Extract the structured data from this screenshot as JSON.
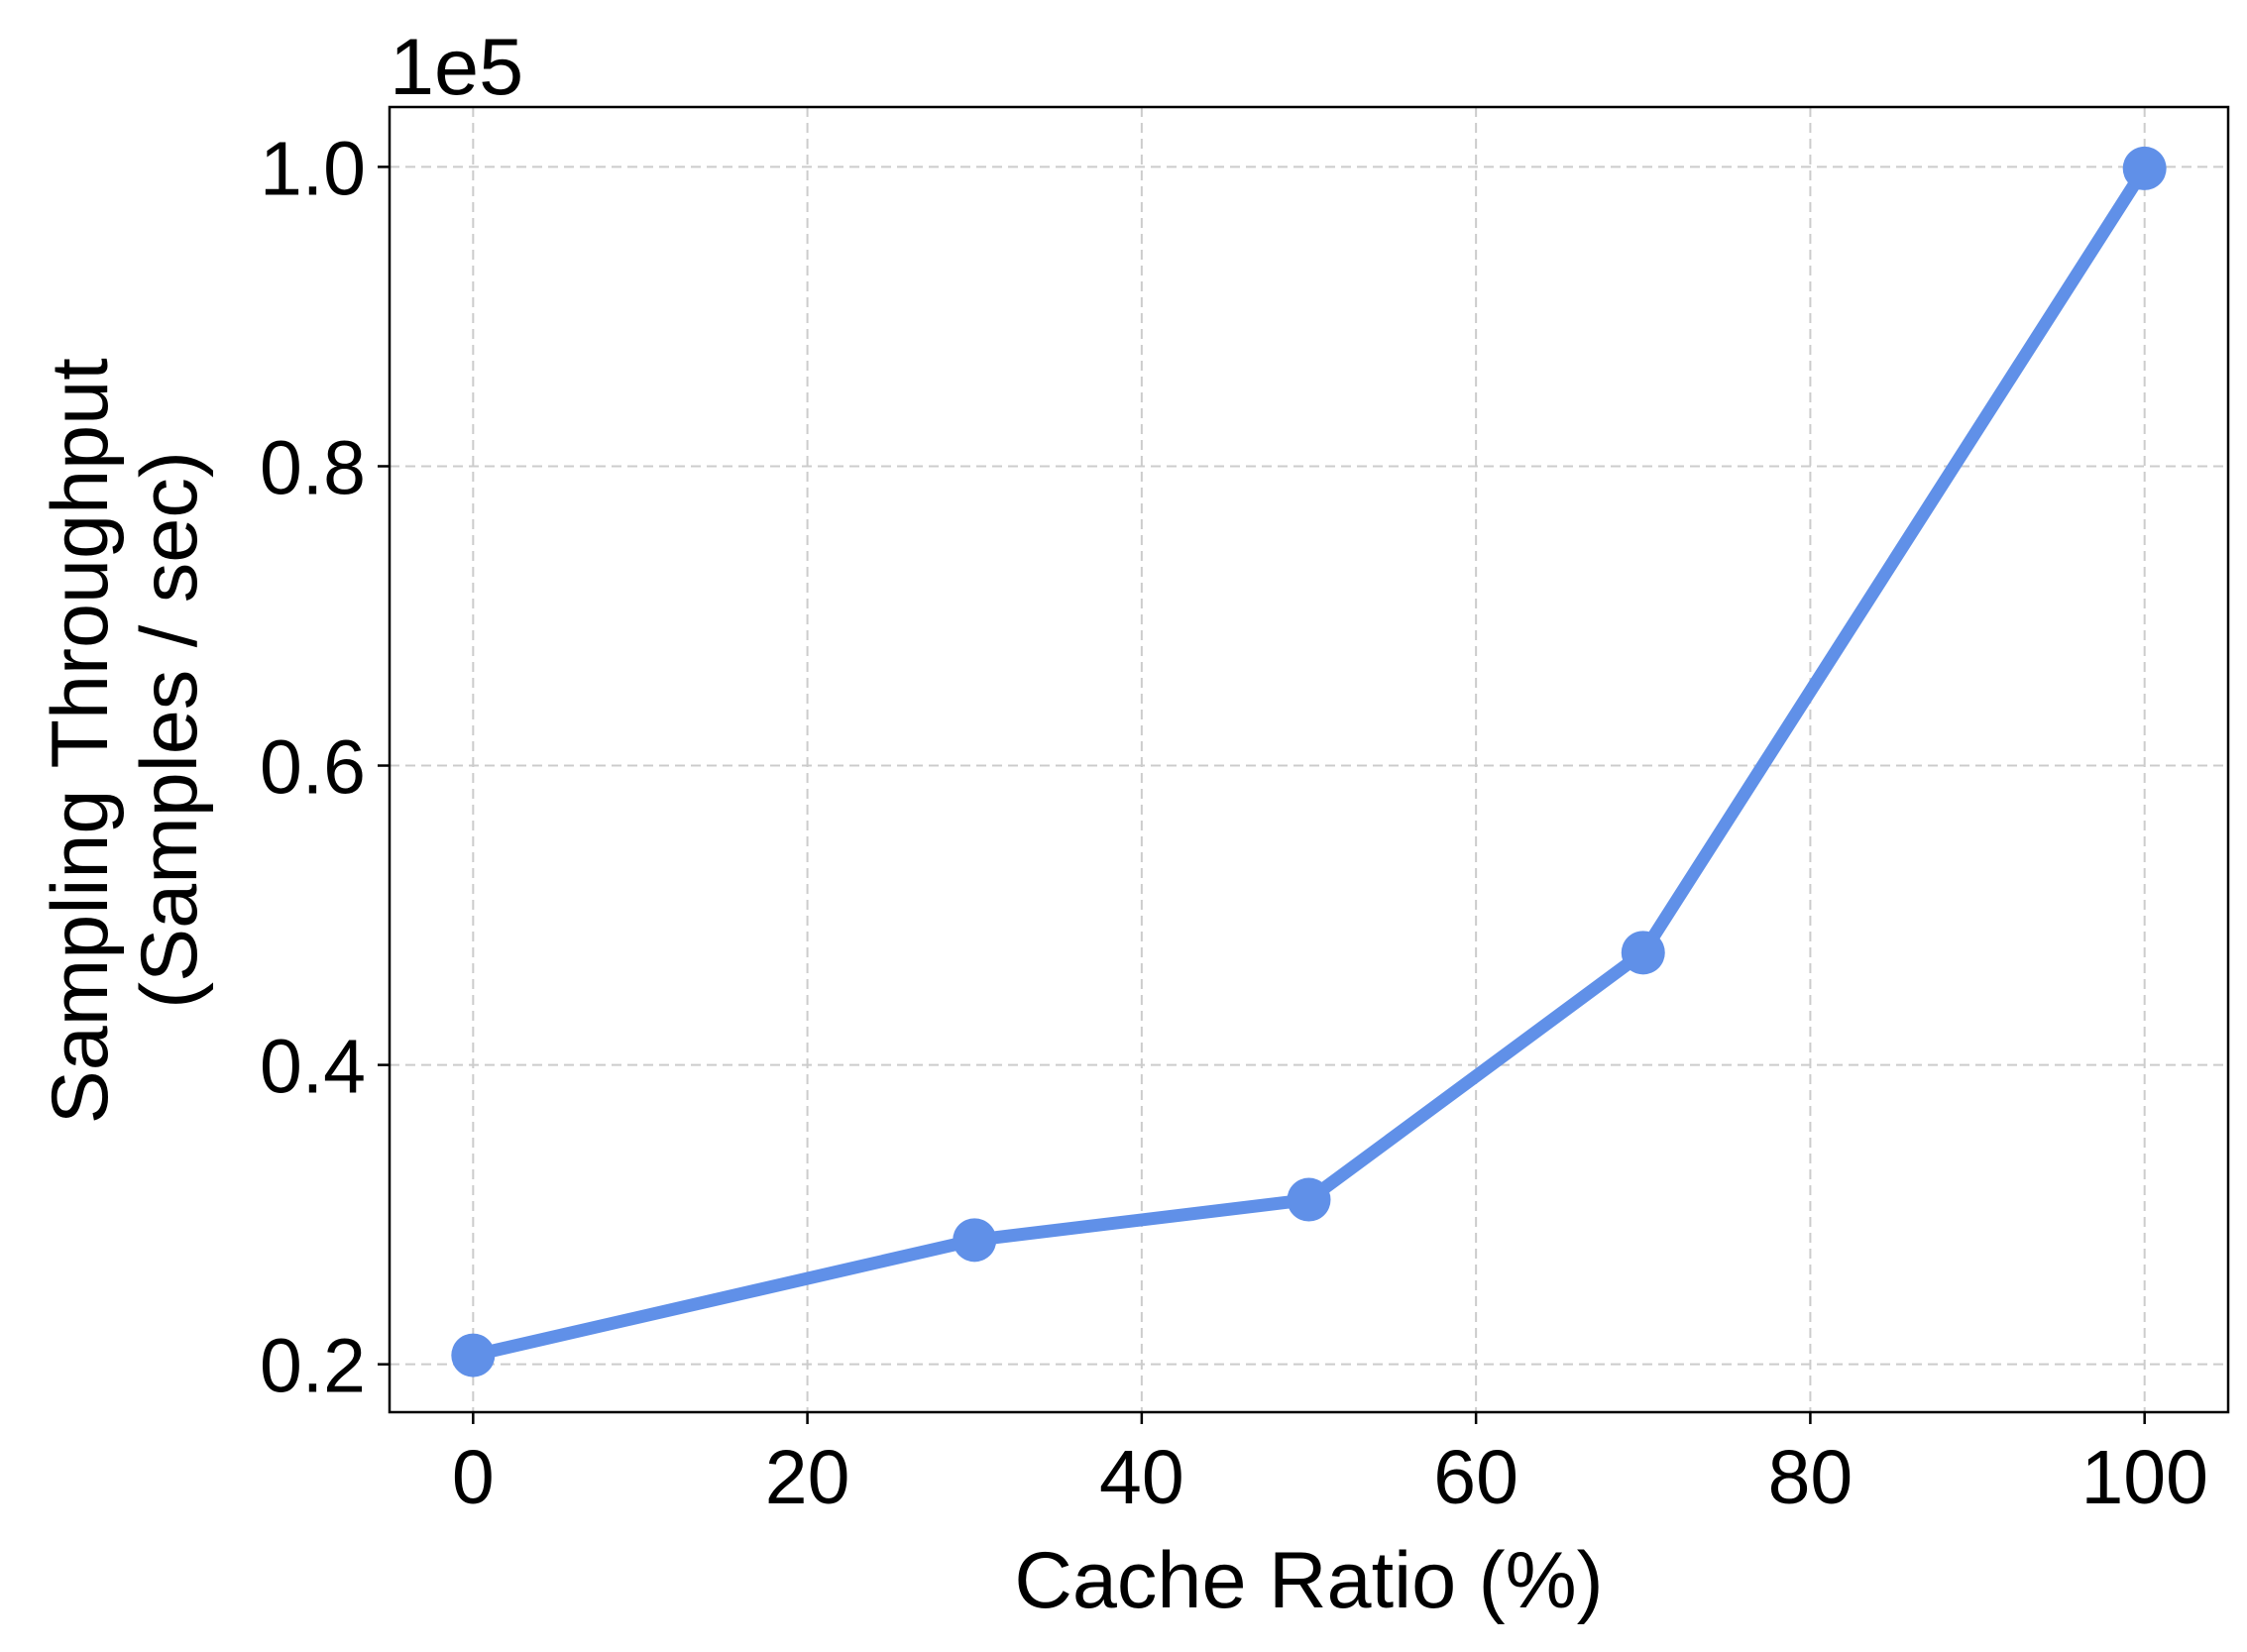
{
  "chart_data": {
    "type": "line",
    "x": [
      0,
      30,
      50,
      70,
      100
    ],
    "series": [
      {
        "values": [
          0.206,
          0.283,
          0.31,
          0.475,
          0.999
        ],
        "color": "#6090e8"
      }
    ],
    "xlabel": "Cache Ratio (%)",
    "ylabel_lines": [
      "Sampling Throughput",
      "(Samples / sec)"
    ],
    "offset_text": "1e5",
    "xticks": [
      0,
      20,
      40,
      60,
      80,
      100
    ],
    "xtick_labels": [
      "0",
      "20",
      "40",
      "60",
      "80",
      "100"
    ],
    "yticks": [
      0.2,
      0.4,
      0.6,
      0.8,
      1.0
    ],
    "ytick_labels": [
      "0.2",
      "0.4",
      "0.6",
      "0.8",
      "1.0"
    ],
    "xlim": [
      -5,
      105
    ],
    "ylim": [
      0.168,
      1.04
    ],
    "grid": true,
    "grid_style": "dashed",
    "marker": "circle"
  }
}
